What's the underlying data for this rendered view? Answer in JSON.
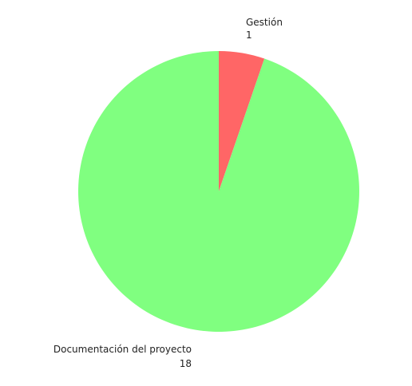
{
  "chart_data": {
    "type": "pie",
    "start_angle": "top",
    "direction": "clockwise",
    "slices": [
      {
        "label": "Gestión",
        "value": 1,
        "color": "#ff6666"
      },
      {
        "label": "Documentación del proyecto",
        "value": 18,
        "color": "#80ff80"
      }
    ]
  }
}
